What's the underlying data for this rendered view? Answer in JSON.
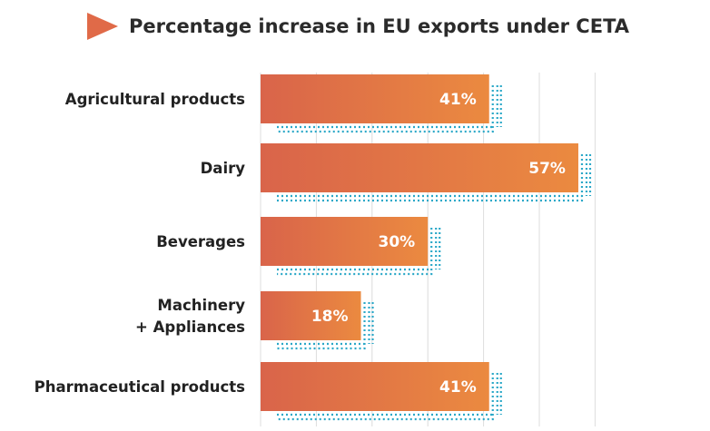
{
  "colors": {
    "bar_start": "#d9644a",
    "bar_end": "#eb8a40",
    "dots": "#2ba8c8",
    "grid": "#dcdcdc",
    "title_icon": "#e06a48"
  },
  "chart_data": {
    "type": "bar",
    "orientation": "horizontal",
    "title": "Percentage increase in EU exports under CETA",
    "categories": [
      [
        "Agricultural products"
      ],
      [
        "Dairy"
      ],
      [
        "Beverages"
      ],
      [
        "Machinery",
        "+ Appliances"
      ],
      [
        "Pharmaceutical products"
      ]
    ],
    "values": [
      41,
      57,
      30,
      18,
      41
    ],
    "value_labels": [
      "41%",
      "57%",
      "30%",
      "18%",
      "41%"
    ],
    "unit": "%",
    "xlim": [
      0,
      64
    ],
    "grid": true
  }
}
